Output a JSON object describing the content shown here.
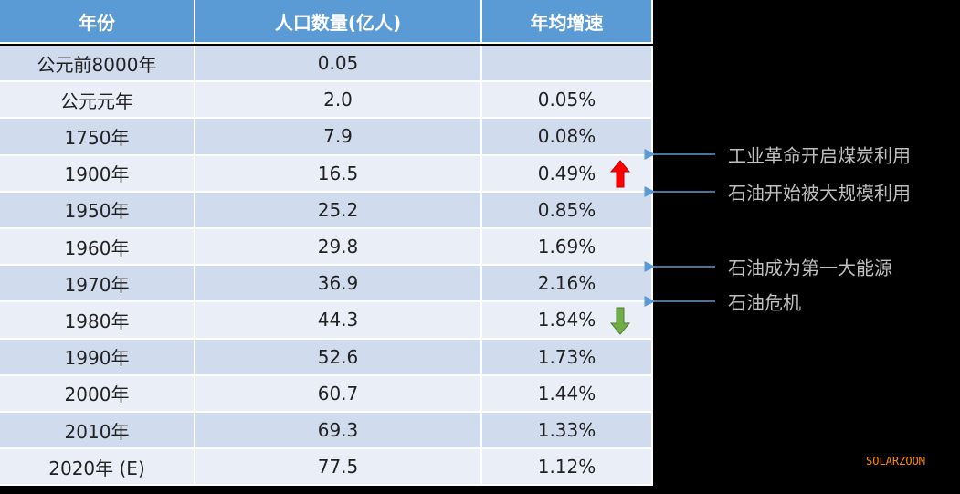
{
  "table": {
    "headers": [
      "年份",
      "人口数量(亿人)",
      "年均增速"
    ],
    "rows": [
      [
        "公元前8000年",
        "0.05",
        null
      ],
      [
        "公元元年",
        "2.0",
        "0.05%"
      ],
      [
        "1750年",
        "7.9",
        "0.08%"
      ],
      [
        "1900年",
        "16.5",
        "0.49%"
      ],
      [
        "1950年",
        "25.2",
        "0.85%"
      ],
      [
        "1960年",
        "29.8",
        "1.69%"
      ],
      [
        "1970年",
        "36.9",
        "2.16%"
      ],
      [
        "1980年",
        "44.3",
        "1.84%"
      ],
      [
        "1990年",
        "52.6",
        "1.73%"
      ],
      [
        "2000年",
        "60.7",
        "1.44%"
      ],
      [
        "2010年",
        "69.3",
        "1.33%"
      ],
      [
        "2020年 (E)",
        "77.5",
        "1.12%"
      ]
    ]
  },
  "annotations": [
    "工业革命开启煤炭利用",
    "石油开始被大规模利用",
    "石油成为第一大能源",
    "石油危机"
  ],
  "watermark": "SOLARZOOM"
}
